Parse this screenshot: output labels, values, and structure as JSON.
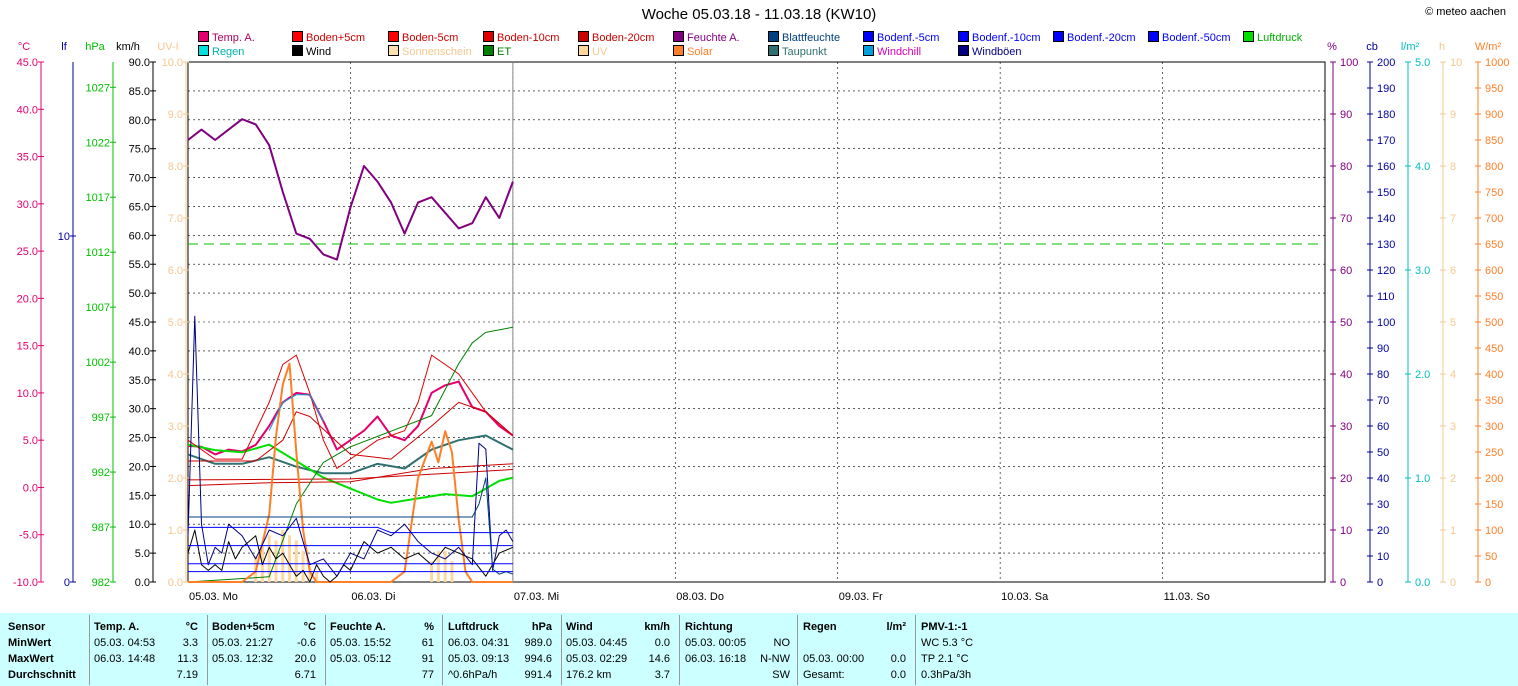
{
  "title": "Woche 05.03.18 - 11.03.18 (KW10)",
  "copyright": "© meteo aachen",
  "legend": [
    {
      "label": "Temp. A.",
      "color": "#e6006e",
      "text": "#b0005a"
    },
    {
      "label": "Regen",
      "color": "#00e0e0",
      "text": "#00b0b0"
    },
    {
      "label": "Boden+5cm",
      "color": "#ff0000",
      "text": "#cc0000"
    },
    {
      "label": "Wind",
      "color": "#000000",
      "text": "#000000"
    },
    {
      "label": "Boden-5cm",
      "color": "#ff0000",
      "text": "#cc0000"
    },
    {
      "label": "Sonnenschein",
      "color": "#ffe0b0",
      "text": "#f5c890"
    },
    {
      "label": "Boden-10cm",
      "color": "#e00000",
      "text": "#cc0000"
    },
    {
      "label": "ET",
      "color": "#008000",
      "text": "#008000"
    },
    {
      "label": "Boden-20cm",
      "color": "#cc0000",
      "text": "#cc0000"
    },
    {
      "label": "UV",
      "color": "#ffd8a0",
      "text": "#f5c890"
    },
    {
      "label": "Feuchte A.",
      "color": "#800080",
      "text": "#800080"
    },
    {
      "label": "Solar",
      "color": "#ff7f27",
      "text": "#ff7f27"
    },
    {
      "label": "Blattfeuchte",
      "color": "#004080",
      "text": "#004080"
    },
    {
      "label": "Taupunkt",
      "color": "#307070",
      "text": "#307070"
    },
    {
      "label": "Bodenf.-5cm",
      "color": "#0000ff",
      "text": "#0000ff"
    },
    {
      "label": "Windchill",
      "color": "#00a0e0",
      "text": "#e000b0"
    },
    {
      "label": "Bodenf.-10cm",
      "color": "#0000ff",
      "text": "#0000ff"
    },
    {
      "label": "Windböen",
      "color": "#000080",
      "text": "#000080"
    },
    {
      "label": "Bodenf.-20cm",
      "color": "#0000ff",
      "text": "#0000ff"
    },
    {
      "label": "Bodenf.-50cm",
      "color": "#0000ff",
      "text": "#0000ff"
    },
    {
      "label": "Luftdruck",
      "color": "#00e000",
      "text": "#00b000"
    }
  ],
  "axes": {
    "temp": {
      "unit": "°C",
      "ticks": [
        "45.0",
        "40.0",
        "35.0",
        "30.0",
        "25.0",
        "20.0",
        "15.0",
        "10.0",
        "5.0",
        "0.0",
        "-5.0",
        "-10.0"
      ],
      "color": "#e6006e"
    },
    "lf": {
      "unit": "lf",
      "ticks": [
        "10",
        "0"
      ],
      "color": "#0000a0"
    },
    "hpa": {
      "unit": "hPa",
      "ticks": [
        "1027",
        "1022",
        "1017",
        "1012",
        "1007",
        "1002",
        "997",
        "992",
        "987",
        "982"
      ],
      "color": "#00c000"
    },
    "kmh": {
      "unit": "km/h",
      "ticks": [
        "90.0",
        "85.0",
        "80.0",
        "75.0",
        "70.0",
        "65.0",
        "60.0",
        "55.0",
        "50.0",
        "45.0",
        "40.0",
        "35.0",
        "30.0",
        "25.0",
        "20.0",
        "15.0",
        "10.0",
        "5.0",
        "0.0"
      ],
      "color": "#000000"
    },
    "uv": {
      "unit": "UV-I",
      "ticks": [
        "10.0",
        "9.0",
        "8.0",
        "7.0",
        "6.0",
        "5.0",
        "4.0",
        "3.0",
        "2.0",
        "1.0",
        "0.0"
      ],
      "color": "#f5c890"
    },
    "pct": {
      "unit": "%",
      "ticks": [
        "100",
        "90",
        "80",
        "70",
        "60",
        "50",
        "40",
        "30",
        "20",
        "10",
        "0"
      ],
      "color": "#800080"
    },
    "cb": {
      "unit": "cb",
      "ticks": [
        "200",
        "190",
        "180",
        "170",
        "160",
        "150",
        "140",
        "130",
        "120",
        "110",
        "100",
        "90",
        "80",
        "70",
        "60",
        "50",
        "40",
        "30",
        "20",
        "10",
        "0"
      ],
      "color": "#0000a0"
    },
    "lm2": {
      "unit": "l/m²",
      "ticks": [
        "5.0",
        "4.0",
        "3.0",
        "2.0",
        "1.0",
        "0.0"
      ],
      "color": "#00c0c0"
    },
    "h": {
      "unit": "h",
      "ticks": [
        "10",
        "9",
        "8",
        "7",
        "6",
        "5",
        "4",
        "3",
        "2",
        "1",
        "0"
      ],
      "color": "#f5c890"
    },
    "wm2": {
      "unit": "W/m²",
      "ticks": [
        "1000",
        "950",
        "900",
        "850",
        "800",
        "750",
        "700",
        "650",
        "600",
        "550",
        "500",
        "450",
        "400",
        "350",
        "300",
        "250",
        "200",
        "150",
        "100",
        "50",
        "0"
      ],
      "color": "#ff7f27"
    }
  },
  "days": [
    "05.03.  Mo",
    "06.03.  Di",
    "07.03.  Mi",
    "08.03.  Do",
    "09.03.  Fr",
    "10.03.  Sa",
    "11.03.  So"
  ],
  "chart_data": {
    "type": "line",
    "title": "Woche 05.03.18 - 11.03.18 (KW10)",
    "x_unit": "hours since 05.03. 00:00",
    "xlim": [
      0,
      168
    ],
    "series": [
      {
        "name": "Feuchte A.",
        "axis": "pct",
        "color": "#800080",
        "width": 2,
        "x": [
          0,
          2,
          4,
          6,
          8,
          10,
          12,
          14,
          16,
          18,
          20,
          22,
          24,
          26,
          28,
          30,
          32,
          34,
          36,
          38,
          40,
          42,
          44,
          46,
          48
        ],
        "y": [
          85,
          87,
          85,
          87,
          89,
          88,
          84,
          75,
          67,
          66,
          63,
          62,
          72,
          80,
          77,
          73,
          67,
          73,
          74,
          71,
          68,
          69,
          74,
          70,
          77
        ]
      },
      {
        "name": "Temp. A.",
        "axis": "temp",
        "color": "#e6006e",
        "width": 2,
        "x": [
          0,
          2,
          4,
          6,
          8,
          10,
          12,
          14,
          16,
          18,
          20,
          22,
          24,
          26,
          28,
          30,
          32,
          34,
          36,
          38,
          40,
          42,
          44,
          46,
          48
        ],
        "y": [
          4.4,
          4.3,
          3.5,
          4.0,
          3.8,
          4.5,
          6.5,
          9.0,
          10.0,
          9.8,
          7.0,
          4.0,
          5.0,
          6.0,
          7.5,
          5.5,
          5.0,
          6.5,
          10.0,
          10.8,
          11.2,
          8.5,
          8.0,
          6.5,
          5.5
        ]
      },
      {
        "name": "Taupunkt",
        "axis": "temp",
        "color": "#307070",
        "width": 2,
        "x": [
          0,
          4,
          8,
          12,
          16,
          20,
          24,
          28,
          32,
          36,
          40,
          44,
          48
        ],
        "y": [
          3.5,
          2.5,
          2.5,
          3.2,
          2.2,
          1.5,
          1.5,
          2.5,
          2.0,
          4.0,
          5.0,
          5.5,
          4.0
        ]
      },
      {
        "name": "Luftdruck",
        "axis": "hpa",
        "color": "#00e000",
        "width": 2,
        "x": [
          0,
          4,
          8,
          12,
          16,
          20,
          24,
          28,
          30,
          34,
          38,
          42,
          44,
          46,
          48
        ],
        "y": [
          994.5,
          994.0,
          993.8,
          994.5,
          993.0,
          991.5,
          990.5,
          989.5,
          989.2,
          989.6,
          990.0,
          989.8,
          990.5,
          991.2,
          991.5
        ]
      },
      {
        "name": "Boden+5cm",
        "axis": "temp",
        "color": "#e00000",
        "width": 1,
        "x": [
          0,
          4,
          8,
          12,
          14,
          16,
          18,
          20,
          22,
          24,
          28,
          32,
          34,
          36,
          38,
          40,
          44,
          48
        ],
        "y": [
          5.0,
          3.0,
          3.0,
          9.0,
          13.0,
          14.0,
          10.0,
          5.0,
          2.0,
          3.0,
          5.0,
          6.0,
          9.0,
          14.0,
          13.0,
          12.0,
          8.0,
          5.5
        ]
      },
      {
        "name": "Boden-5cm",
        "axis": "temp",
        "color": "#cc0000",
        "width": 1,
        "x": [
          0,
          10,
          14,
          16,
          18,
          24,
          30,
          36,
          40,
          44,
          48
        ],
        "y": [
          2.8,
          2.8,
          5.0,
          8.0,
          7.5,
          3.5,
          3.0,
          6.5,
          9.0,
          8.0,
          5.5
        ]
      },
      {
        "name": "Boden-10cm",
        "axis": "temp",
        "color": "#cc0000",
        "width": 1,
        "x": [
          0,
          12,
          24,
          36,
          48
        ],
        "y": [
          0.2,
          0.5,
          0.6,
          2.0,
          2.5
        ]
      },
      {
        "name": "Boden-20cm",
        "axis": "temp",
        "color": "#cc0000",
        "width": 1,
        "x": [
          0,
          24,
          48
        ],
        "y": [
          0.8,
          0.9,
          1.9
        ]
      },
      {
        "name": "ET",
        "axis": "uv",
        "color": "#008000",
        "width": 1,
        "x": [
          0,
          12,
          14,
          16,
          20,
          24,
          30,
          36,
          40,
          42,
          44,
          48
        ],
        "y": [
          0,
          0.1,
          0.8,
          1.5,
          2.3,
          2.6,
          2.9,
          3.2,
          4.2,
          4.6,
          4.8,
          4.9
        ]
      },
      {
        "name": "Solar",
        "axis": "wm2",
        "color": "#ff7f27",
        "width": 2,
        "x": [
          0,
          8,
          10,
          12,
          13,
          14,
          15,
          16,
          17,
          18,
          19,
          20,
          24,
          30,
          32,
          34,
          36,
          37,
          38,
          39,
          40,
          41,
          42,
          44,
          48
        ],
        "y": [
          0,
          0,
          20,
          130,
          280,
          380,
          420,
          250,
          100,
          20,
          0,
          0,
          0,
          0,
          20,
          200,
          270,
          230,
          290,
          250,
          120,
          20,
          0,
          0,
          0
        ]
      },
      {
        "name": "Wind",
        "axis": "kmh",
        "color": "#000000",
        "width": 1,
        "x": [
          0,
          1,
          2,
          3,
          4,
          5,
          6,
          7,
          8,
          9,
          10,
          11,
          12,
          13,
          14,
          15,
          16,
          17,
          18,
          19,
          20,
          21,
          22,
          23,
          24,
          26,
          28,
          30,
          32,
          34,
          36,
          38,
          40,
          42,
          44,
          46,
          48
        ],
        "y": [
          5,
          9,
          3,
          2,
          3,
          2,
          7,
          4,
          6,
          7,
          8,
          3,
          6,
          4,
          5,
          3,
          1,
          2,
          0,
          3,
          1,
          0,
          1,
          3,
          2,
          7,
          5,
          6,
          4,
          5,
          3,
          6,
          5,
          4,
          1,
          5,
          6
        ]
      },
      {
        "name": "Windböen",
        "axis": "kmh",
        "color": "#000080",
        "width": 1,
        "x": [
          0,
          1,
          2,
          3,
          4,
          5,
          6,
          8,
          10,
          12,
          14,
          16,
          18,
          20,
          22,
          24,
          26,
          28,
          30,
          32,
          34,
          36,
          38,
          40,
          42,
          43,
          44,
          45,
          46,
          47,
          48
        ],
        "y": [
          8,
          46,
          10,
          3,
          6,
          5,
          10,
          8,
          4,
          9,
          8,
          11,
          3,
          4,
          1,
          5,
          4,
          9,
          8,
          10,
          7,
          5,
          4,
          6,
          3,
          24,
          23,
          2,
          8,
          9,
          7
        ]
      },
      {
        "name": "Blattfeuchte",
        "axis": "cb",
        "color": "#004080",
        "width": 1,
        "x": [
          0,
          42,
          43,
          44,
          45,
          46,
          47,
          48
        ],
        "y": [
          25,
          25,
          30,
          40,
          5,
          3,
          4,
          3
        ]
      },
      {
        "name": "Bodenf.-5cm",
        "axis": "cb",
        "color": "#0000ff",
        "width": 1,
        "x": [
          0,
          28,
          30,
          48
        ],
        "y": [
          21,
          21,
          19,
          19
        ]
      },
      {
        "name": "Bodenf.-10cm",
        "axis": "cb",
        "color": "#0000ff",
        "width": 1,
        "x": [
          0,
          48
        ],
        "y": [
          14,
          14
        ]
      },
      {
        "name": "Bodenf.-20cm",
        "axis": "cb",
        "color": "#0000ff",
        "width": 1,
        "x": [
          0,
          48
        ],
        "y": [
          7,
          7
        ]
      },
      {
        "name": "Bodenf.-50cm",
        "axis": "cb",
        "color": "#0000ff",
        "width": 1,
        "x": [
          0,
          48
        ],
        "y": [
          4,
          4
        ]
      },
      {
        "name": "Windchill",
        "axis": "temp",
        "color": "#00a0e0",
        "width": 1,
        "x": [
          12,
          14,
          16,
          18,
          20
        ],
        "y": [
          6.0,
          9.0,
          9.8,
          9.8,
          7.0
        ]
      }
    ],
    "sunshine_bars": {
      "axis": "h",
      "color": "#ffd8a0",
      "x": [
        10,
        11,
        12,
        13,
        14,
        15,
        16,
        17,
        18,
        19,
        36,
        37,
        38,
        39
      ],
      "y": [
        0.5,
        0.7,
        0.9,
        0.8,
        1.0,
        0.9,
        0.8,
        0.6,
        0.3,
        0.2,
        0.4,
        0.6,
        0.6,
        0.4
      ]
    },
    "reference_line": {
      "name": "Luftdruck Mittel",
      "axis": "pct",
      "value": 65,
      "color": "#00c000"
    }
  },
  "stats": {
    "headers": [
      "Sensor",
      "Temp. A.",
      "°C",
      "Boden+5cm",
      "°C",
      "Feuchte A.",
      "%",
      "Luftdruck",
      "hPa",
      "Wind",
      "km/h",
      "Richtung",
      "Regen",
      "l/m²",
      "PMV-1:-1"
    ],
    "rows": [
      {
        "label": "MinWert",
        "temp_t": "05.03.  04:53",
        "temp_v": "3.3",
        "bod_t": "05.03.  21:27",
        "bod_v": "-0.6",
        "feu_t": "05.03.  15:52",
        "feu_v": "61",
        "luft_t": "06.03.  04:31",
        "luft_v": "989.0",
        "wind_t": "05.03.  04:45",
        "wind_v": "0.0",
        "ri_t": "05.03.  00:05",
        "ri_v": "NO",
        "reg_t": "",
        "reg_v": "",
        "pmv": "WC 5.3 °C"
      },
      {
        "label": "MaxWert",
        "temp_t": "06.03.  14:48",
        "temp_v": "11.3",
        "bod_t": "05.03.  12:32",
        "bod_v": "20.0",
        "feu_t": "05.03.  05:12",
        "feu_v": "91",
        "luft_t": "05.03.  09:13",
        "luft_v": "994.6",
        "wind_t": "05.03.  02:29",
        "wind_v": "14.6",
        "ri_t": "06.03.  16:18",
        "ri_v": "N-NW",
        "reg_t": "05.03.  00:00",
        "reg_v": "0.0",
        "pmv": "TP 2.1 °C"
      },
      {
        "label": "Durchschnitt",
        "temp_t": "",
        "temp_v": "7.19",
        "bod_t": "",
        "bod_v": "6.71",
        "feu_t": "",
        "feu_v": "77",
        "luft_t": "^0.6hPa/h",
        "luft_v": "991.4",
        "wind_t": "176.2 km",
        "wind_v": "3.7",
        "ri_t": "",
        "ri_v": "SW",
        "reg_t": "Gesamt:",
        "reg_v": "0.0",
        "pmv": "0.3hPa/3h"
      }
    ]
  }
}
